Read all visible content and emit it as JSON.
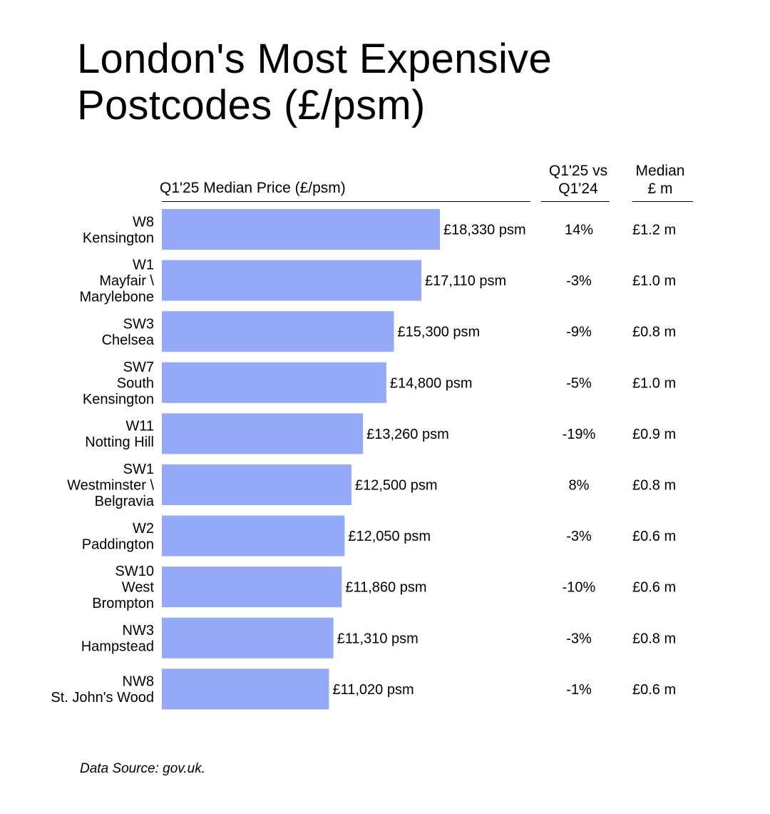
{
  "title_lines": [
    "London's Most Expensive",
    "Postcodes (£/psm)"
  ],
  "columns": {
    "price_header": "Q1'25 Median Price (£/psm)",
    "change_header": [
      "Q1'25 vs",
      "Q1'24"
    ],
    "median_header": [
      "Median",
      "£ m"
    ]
  },
  "chart_data": {
    "type": "bar",
    "orientation": "horizontal",
    "title": "London's Most Expensive Postcodes (£/psm)",
    "xlabel": "Q1'25 Median Price (£/psm)",
    "bar_color": "#94aaf8",
    "categories": [
      [
        "W8",
        "Kensington"
      ],
      [
        "W1",
        "Mayfair \\",
        "Marylebone"
      ],
      [
        "SW3",
        "Chelsea"
      ],
      [
        "SW7",
        "South",
        "Kensington"
      ],
      [
        "W11",
        "Notting Hill"
      ],
      [
        "SW1",
        "Westminster \\",
        "Belgravia"
      ],
      [
        "W2",
        "Paddington"
      ],
      [
        "SW10",
        "West",
        "Brompton"
      ],
      [
        "NW3",
        "Hampstead"
      ],
      [
        "NW8",
        "St. John's Wood"
      ]
    ],
    "values": [
      18330,
      17110,
      15300,
      14800,
      13260,
      12500,
      12050,
      11860,
      11310,
      11020
    ],
    "value_labels": [
      "£18,330 psm",
      "£17,110 psm",
      "£15,300 psm",
      "£14,800 psm",
      "£13,260 psm",
      "£12,500 psm",
      "£12,050 psm",
      "£11,860 psm",
      "£11,310 psm",
      "£11,020 psm"
    ],
    "yoy_change": [
      "14%",
      "-3%",
      "-9%",
      "-5%",
      "-19%",
      "8%",
      "-3%",
      "-10%",
      "-3%",
      "-1%"
    ],
    "median_price": [
      "£1.2 m",
      "£1.0 m",
      "£0.8 m",
      "£1.0 m",
      "£0.9 m",
      "£0.8 m",
      "£0.6 m",
      "£0.6 m",
      "£0.8 m",
      "£0.6 m"
    ],
    "xlim": [
      0,
      18330
    ],
    "grid": false,
    "legend": "none"
  },
  "source": "Data Source: gov.uk."
}
